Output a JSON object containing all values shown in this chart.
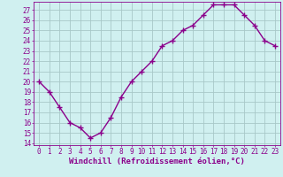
{
  "x": [
    0,
    1,
    2,
    3,
    4,
    5,
    6,
    7,
    8,
    9,
    10,
    11,
    12,
    13,
    14,
    15,
    16,
    17,
    18,
    19,
    20,
    21,
    22,
    23
  ],
  "y": [
    20,
    19,
    17.5,
    16,
    15.5,
    14.5,
    15,
    16.5,
    18.5,
    20,
    21,
    22,
    23.5,
    24,
    25,
    25.5,
    26.5,
    27.5,
    27.5,
    27.5,
    26.5,
    25.5,
    24,
    23.5
  ],
  "line_color": "#8B008B",
  "marker": "+",
  "bg_color": "#d0f0f0",
  "grid_color": "#a8c8c8",
  "xlabel": "Windchill (Refroidissement éolien,°C)",
  "xlabel_color": "#8B008B",
  "ylim_min": 13.8,
  "ylim_max": 27.8,
  "yticks": [
    14,
    15,
    16,
    17,
    18,
    19,
    20,
    21,
    22,
    23,
    24,
    25,
    26,
    27
  ],
  "xlim_min": -0.5,
  "xlim_max": 23.5,
  "xticks": [
    0,
    1,
    2,
    3,
    4,
    5,
    6,
    7,
    8,
    9,
    10,
    11,
    12,
    13,
    14,
    15,
    16,
    17,
    18,
    19,
    20,
    21,
    22,
    23
  ],
  "tick_color": "#8B008B",
  "font_size": 5.5,
  "xlabel_font_size": 6.5,
  "linewidth": 1.0,
  "markersize": 4,
  "markeredgewidth": 1.0,
  "spine_color": "#8B008B"
}
